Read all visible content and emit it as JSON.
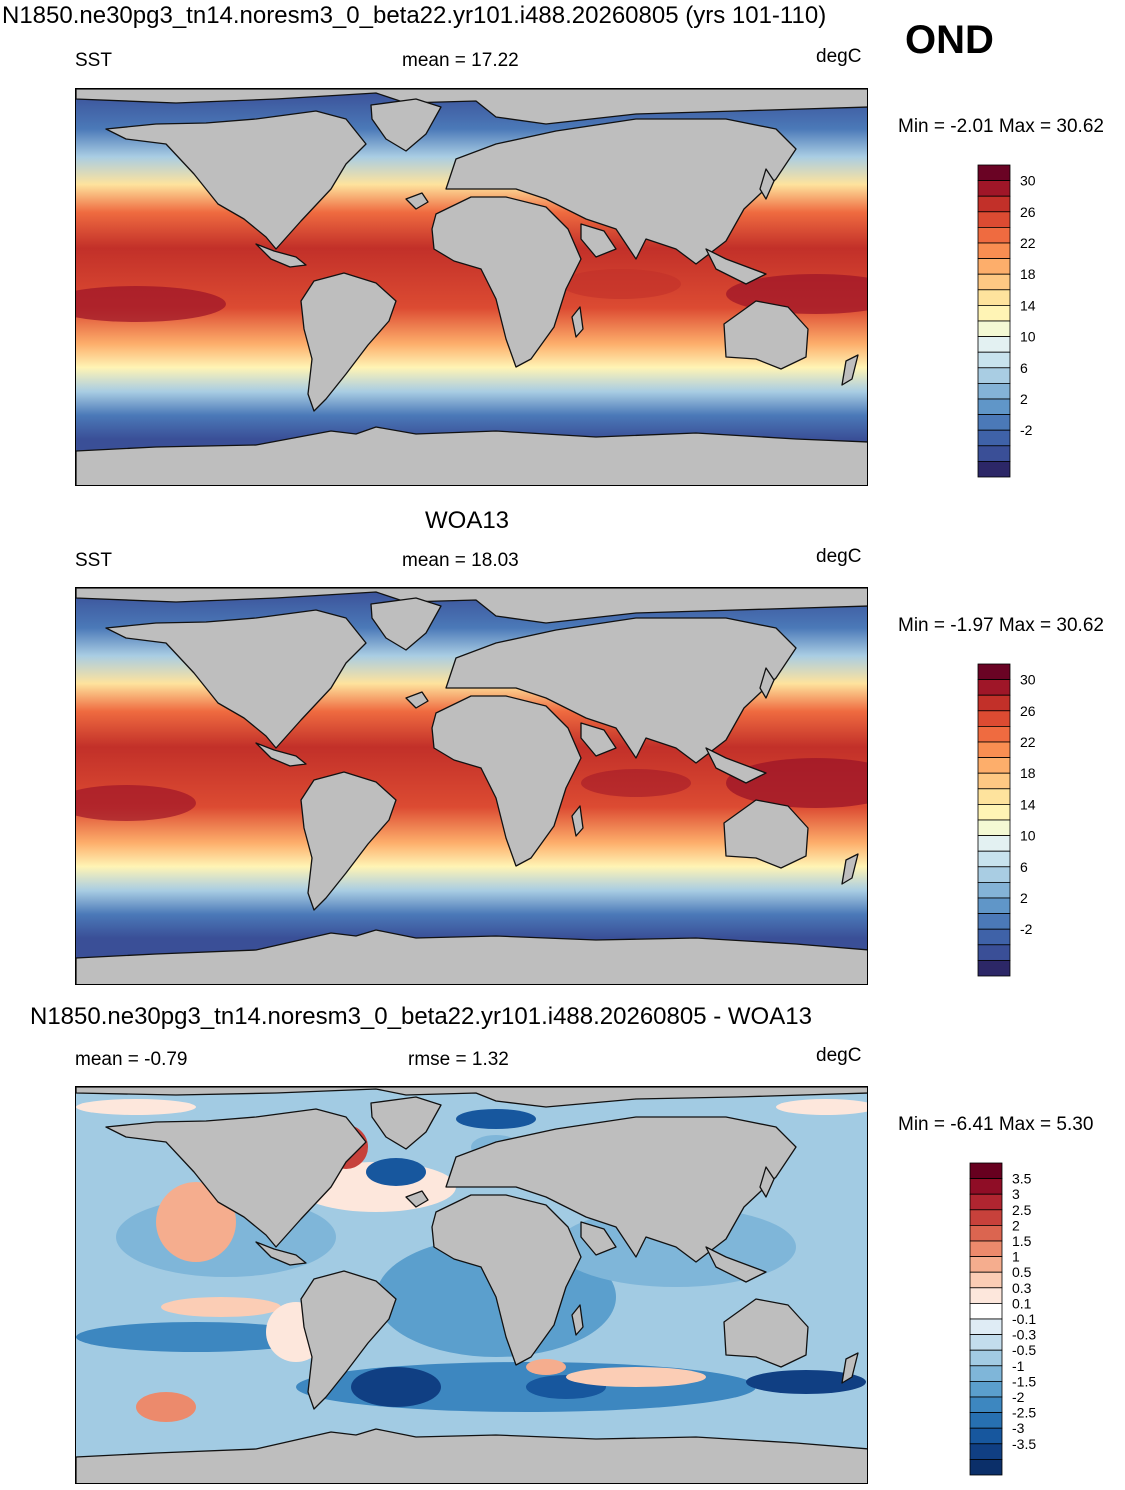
{
  "header": {
    "title": "N1850.ne30pg3_tn14.noresm3_0_beta22.yr101.i488.20260805 (yrs 101-110)",
    "season": "OND"
  },
  "panels": [
    {
      "id": "model",
      "title": "",
      "variable": "SST",
      "stat": "mean =  17.22",
      "units": "degC",
      "minmax": "Min =  -2.01 Max =  30.62",
      "scale": "sst"
    },
    {
      "id": "obs",
      "title": "WOA13",
      "variable": "SST",
      "stat": "mean =  18.03",
      "units": "degC",
      "minmax": "Min =  -1.97 Max =  30.62",
      "scale": "sst"
    },
    {
      "id": "diff",
      "title": "N1850.ne30pg3_tn14.noresm3_0_beta22.yr101.i488.20260805 - WOA13",
      "variable": "mean =  -0.79",
      "stat": "rmse =   1.32",
      "units": "degC",
      "minmax": "Min =  -6.41 Max =   5.30",
      "scale": "diff"
    }
  ],
  "colorbars": {
    "sst": {
      "colors": [
        "#2c2767",
        "#3a4f97",
        "#3f62a8",
        "#4b79b8",
        "#6096c8",
        "#84b3d7",
        "#a9cde3",
        "#c8e3ee",
        "#e3f1f2",
        "#f4f9d4",
        "#fff4b5",
        "#fee39d",
        "#fec883",
        "#fdae6b",
        "#f98e52",
        "#ef6b40",
        "#dc4b32",
        "#c23029",
        "#9f1628",
        "#6a0324"
      ],
      "labels": [
        "30",
        "26",
        "22",
        "18",
        "14",
        "10",
        "6",
        "2",
        "-2"
      ]
    },
    "diff": {
      "colors": [
        "#0b2f69",
        "#103f83",
        "#17579e",
        "#2770b1",
        "#3d87c0",
        "#5b9fcd",
        "#7fb6d9",
        "#a2cbe3",
        "#c3dded",
        "#dfecf5",
        "#ffffff",
        "#fde7dc",
        "#fbcdb5",
        "#f5ad8e",
        "#ec8a6c",
        "#db6550",
        "#c7413b",
        "#b02530",
        "#8f0d26",
        "#67001f"
      ],
      "labels": [
        "3.5",
        "3",
        "2.5",
        "2",
        "1.5",
        "1",
        "0.5",
        "0.3",
        "0.1",
        "-0.1",
        "-0.3",
        "-0.5",
        "-1",
        "-1.5",
        "-2",
        "-2.5",
        "-3",
        "-3.5"
      ]
    }
  }
}
